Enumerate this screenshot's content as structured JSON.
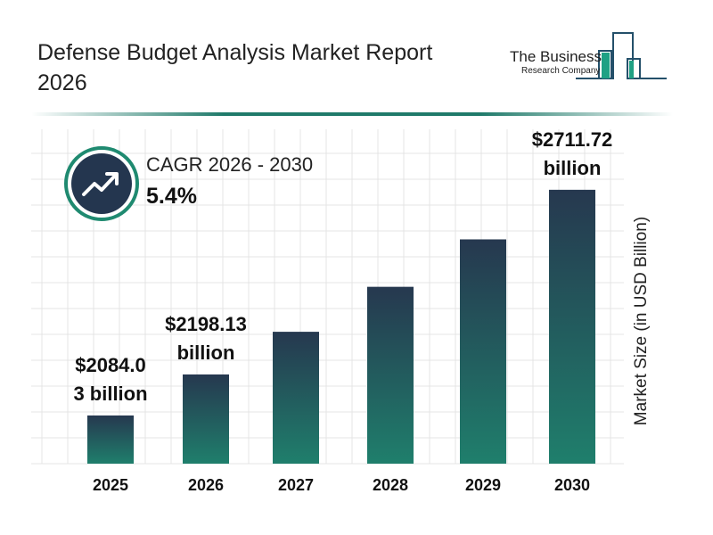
{
  "header": {
    "title": "Defense Budget Analysis Market Report 2026"
  },
  "logo": {
    "line1": "The Business",
    "line2": "Research Company"
  },
  "cagr": {
    "label": "CAGR 2026 - 2030",
    "value": "5.4%",
    "icon": "trending-up-icon"
  },
  "colors": {
    "bar_top": "#26384f",
    "bar_bottom": "#1f7f6c",
    "accent": "#1f8a70",
    "badge": "#24364f"
  },
  "chart_data": {
    "type": "bar",
    "title": "",
    "xlabel": "",
    "ylabel": "Market Size (in USD Billion)",
    "categories": [
      "2025",
      "2026",
      "2027",
      "2028",
      "2029",
      "2030"
    ],
    "values": [
      2084.03,
      2198.13,
      2316.8,
      2441.9,
      2573.8,
      2711.72
    ],
    "data_labels": [
      {
        "index": 0,
        "text": "$2084.0\n3 billion"
      },
      {
        "index": 1,
        "text": "$2198.13\nbillion"
      },
      {
        "index": 5,
        "text": "$2711.72\nbillion"
      }
    ],
    "ylim": [
      1950,
      2880
    ],
    "grid": true
  }
}
